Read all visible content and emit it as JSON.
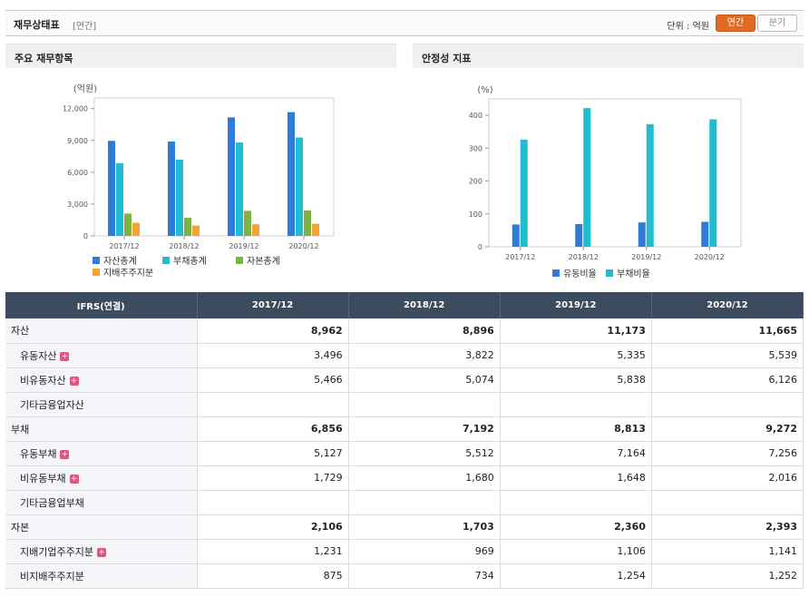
{
  "header": {
    "title": "재무상태표",
    "period": "[연간]",
    "unit": "단위 : 억원",
    "toggle_annual": "연간",
    "toggle_quarter": "분기"
  },
  "panels": {
    "left_title": "주요 재무항목",
    "right_title": "안정성 지표"
  },
  "colors": {
    "blue": "#2e7bd8",
    "cyan": "#20bcd0",
    "green": "#7cb342",
    "orange": "#f5a335",
    "header_bg": "#3d4b5e",
    "accent": "#e06b23"
  },
  "chart_data": [
    {
      "type": "bar",
      "unit_label": "(억원)",
      "categories": [
        "2017/12",
        "2018/12",
        "2019/12",
        "2020/12"
      ],
      "ylim": [
        0,
        13000
      ],
      "yticks": [
        "0",
        "3,000",
        "6,000",
        "9,000",
        "12,000"
      ],
      "ytick_values": [
        0,
        3000,
        6000,
        9000,
        12000
      ],
      "grid": false,
      "legend_position": "bottom",
      "series": [
        {
          "name": "자산총계",
          "color": "#2e7bd8",
          "values": [
            8962,
            8896,
            11173,
            11665
          ]
        },
        {
          "name": "부채총계",
          "color": "#20bcd0",
          "values": [
            6856,
            7192,
            8813,
            9272
          ]
        },
        {
          "name": "자본총계",
          "color": "#7cb342",
          "values": [
            2106,
            1703,
            2360,
            2393
          ]
        },
        {
          "name": "지배주주지분",
          "color": "#f5a335",
          "values": [
            1231,
            969,
            1106,
            1141
          ]
        }
      ]
    },
    {
      "type": "bar",
      "unit_label": "(%)",
      "categories": [
        "2017/12",
        "2018/12",
        "2019/12",
        "2020/12"
      ],
      "ylim": [
        0,
        450
      ],
      "yticks": [
        "0",
        "100",
        "200",
        "300",
        "400"
      ],
      "ytick_values": [
        0,
        100,
        200,
        300,
        400
      ],
      "grid": false,
      "legend_position": "bottom",
      "series": [
        {
          "name": "유동비율",
          "color": "#2e7bd8",
          "values": [
            68,
            69,
            74,
            76
          ]
        },
        {
          "name": "부채비율",
          "color": "#20bcd0",
          "values": [
            326,
            422,
            373,
            388
          ]
        }
      ]
    }
  ],
  "table": {
    "header_label": "IFRS(연결)",
    "columns": [
      "2017/12",
      "2018/12",
      "2019/12",
      "2020/12"
    ],
    "rows": [
      {
        "label": "자산",
        "level": 0,
        "plus": false,
        "values": [
          "8,962",
          "8,896",
          "11,173",
          "11,665"
        ]
      },
      {
        "label": "유동자산",
        "level": 1,
        "plus": true,
        "values": [
          "3,496",
          "3,822",
          "5,335",
          "5,539"
        ]
      },
      {
        "label": "비유동자산",
        "level": 1,
        "plus": true,
        "values": [
          "5,466",
          "5,074",
          "5,838",
          "6,126"
        ]
      },
      {
        "label": "기타금융업자산",
        "level": 1,
        "plus": false,
        "values": [
          "",
          "",
          "",
          ""
        ]
      },
      {
        "label": "부채",
        "level": 0,
        "plus": false,
        "values": [
          "6,856",
          "7,192",
          "8,813",
          "9,272"
        ]
      },
      {
        "label": "유동부채",
        "level": 1,
        "plus": true,
        "values": [
          "5,127",
          "5,512",
          "7,164",
          "7,256"
        ]
      },
      {
        "label": "비유동부채",
        "level": 1,
        "plus": true,
        "values": [
          "1,729",
          "1,680",
          "1,648",
          "2,016"
        ]
      },
      {
        "label": "기타금융업부채",
        "level": 1,
        "plus": false,
        "values": [
          "",
          "",
          "",
          ""
        ]
      },
      {
        "label": "자본",
        "level": 0,
        "plus": false,
        "values": [
          "2,106",
          "1,703",
          "2,360",
          "2,393"
        ]
      },
      {
        "label": "지배기업주주지분",
        "level": 1,
        "plus": true,
        "values": [
          "1,231",
          "969",
          "1,106",
          "1,141"
        ]
      },
      {
        "label": "비지배주주지분",
        "level": 1,
        "plus": false,
        "values": [
          "875",
          "734",
          "1,254",
          "1,252"
        ]
      }
    ]
  }
}
